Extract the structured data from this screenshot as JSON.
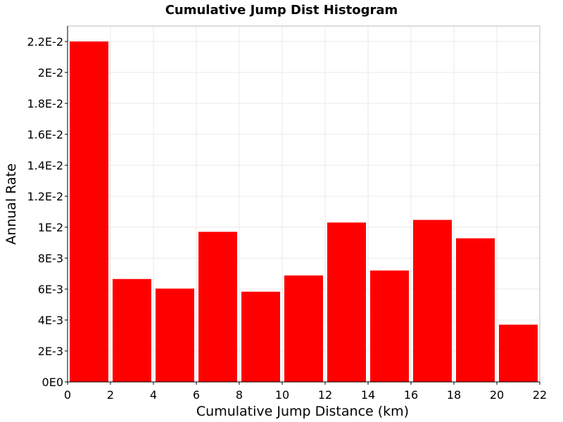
{
  "chart_data": {
    "type": "bar",
    "title": "Cumulative Jump Dist Histogram",
    "xlabel": "Cumulative Jump Distance (km)",
    "ylabel": "Annual Rate",
    "xlim": [
      0,
      22
    ],
    "ylim": [
      0,
      0.023
    ],
    "bin_width": 2,
    "x_ticks": [
      0,
      2,
      4,
      6,
      8,
      10,
      12,
      14,
      16,
      18,
      20,
      22
    ],
    "x_tick_labels": [
      "0",
      "2",
      "4",
      "6",
      "8",
      "10",
      "12",
      "14",
      "16",
      "18",
      "20",
      "22"
    ],
    "y_ticks": [
      0,
      0.002,
      0.004,
      0.006,
      0.008,
      0.01,
      0.012,
      0.014,
      0.016,
      0.018,
      0.02,
      0.022
    ],
    "y_tick_labels": [
      "0E0",
      "2E-3",
      "4E-3",
      "6E-3",
      "8E-3",
      "1E-2",
      "1.2E-2",
      "1.4E-2",
      "1.6E-2",
      "1.8E-2",
      "2E-2",
      "2.2E-2"
    ],
    "x": [
      1,
      3,
      5,
      7,
      9,
      11,
      13,
      15,
      17,
      19,
      21
    ],
    "values": [
      0.022,
      0.00665,
      0.00603,
      0.0097,
      0.00583,
      0.00688,
      0.0103,
      0.0072,
      0.01047,
      0.00928,
      0.0037
    ],
    "grid": true,
    "colors": {
      "bar": "#ff0000",
      "grid": "#e8e8e8",
      "plot_border": "#bcbcbc",
      "axis": "#000000",
      "background": "#ffffff"
    }
  }
}
